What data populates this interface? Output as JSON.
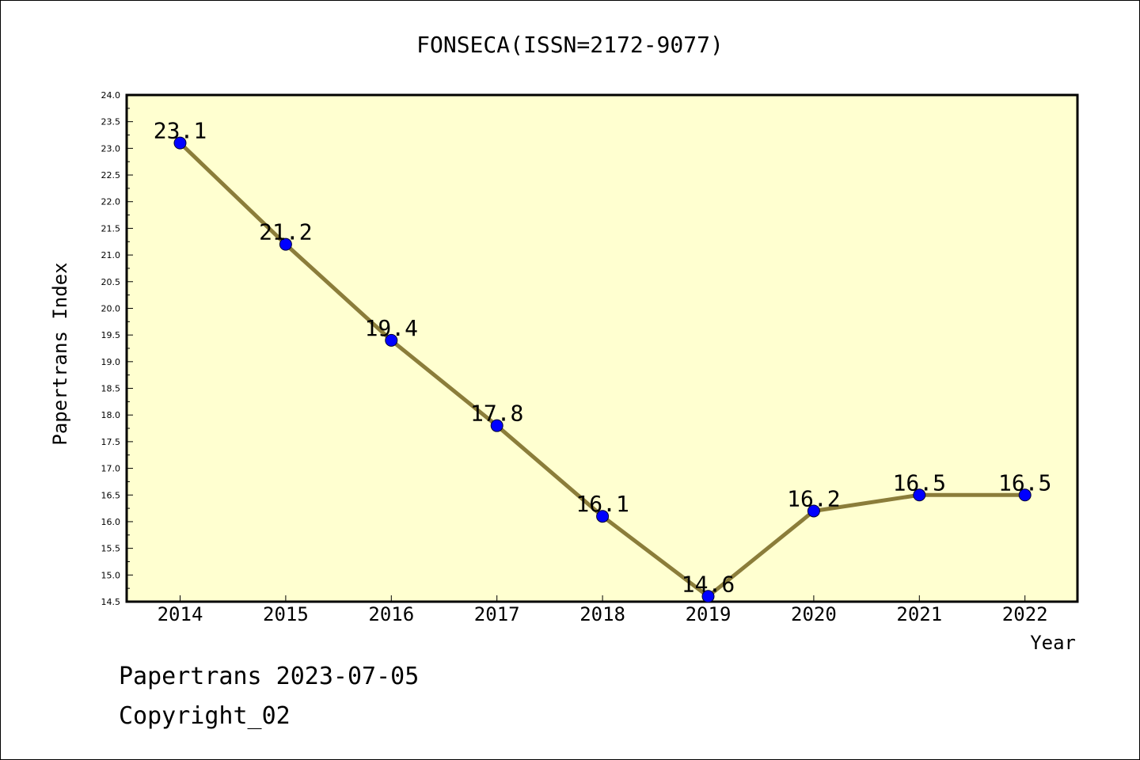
{
  "chart_data": {
    "type": "line",
    "title": "FONSECA(ISSN=2172-9077)",
    "xlabel": "Year",
    "ylabel": "Papertrans Index",
    "x": [
      "2014",
      "2015",
      "2016",
      "2017",
      "2018",
      "2019",
      "2020",
      "2021",
      "2022"
    ],
    "series": [
      {
        "values": [
          23.1,
          21.2,
          19.4,
          17.8,
          16.1,
          14.6,
          16.2,
          16.5,
          16.5
        ]
      }
    ],
    "data_labels": [
      "23.1",
      "21.2",
      "19.4",
      "17.8",
      "16.1",
      "14.6",
      "16.2",
      "16.5",
      "16.5"
    ],
    "ylim": [
      14.5,
      24.0
    ],
    "yticks": [
      "14.5",
      "15.0",
      "15.5",
      "16.0",
      "16.5",
      "17.0",
      "17.5",
      "18.0",
      "18.5",
      "19.0",
      "19.5",
      "20.0",
      "20.5",
      "21.0",
      "21.5",
      "22.0",
      "22.5",
      "23.0",
      "23.5",
      "24.0"
    ],
    "grid": false,
    "colors": {
      "plot_bg": "#ffffd0",
      "line": "#8b7d3a",
      "marker": "#0000ff"
    }
  },
  "footer": {
    "line1": "Papertrans 2023-07-05",
    "line2": "Copyright_02"
  }
}
